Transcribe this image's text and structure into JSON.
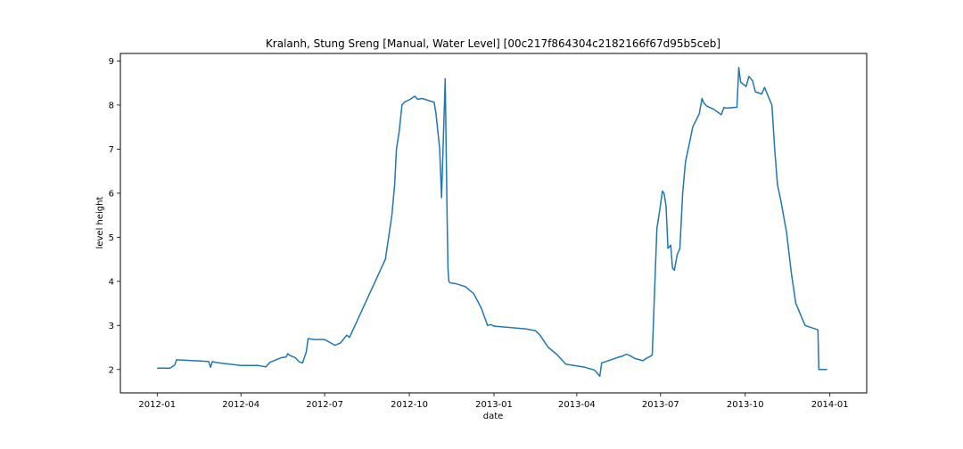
{
  "chart_data": {
    "type": "line",
    "title": "Kralanh, Stung Sreng [Manual, Water Level] [00c217f864304c2182166f67d95b5ceb]",
    "xlabel": "date",
    "ylabel": "level height",
    "xlim": [
      "2011-11-22",
      "2014-02-10"
    ],
    "ylim": [
      1.47,
      9.17
    ],
    "grid": false,
    "line_color": "#1f77b4",
    "x_ticks": [
      {
        "date": "2012-01-01",
        "label": "2012-01"
      },
      {
        "date": "2012-04-01",
        "label": "2012-04"
      },
      {
        "date": "2012-07-01",
        "label": "2012-07"
      },
      {
        "date": "2012-10-01",
        "label": "2012-10"
      },
      {
        "date": "2013-01-01",
        "label": "2013-01"
      },
      {
        "date": "2013-04-01",
        "label": "2013-04"
      },
      {
        "date": "2013-07-01",
        "label": "2013-07"
      },
      {
        "date": "2013-10-01",
        "label": "2013-10"
      },
      {
        "date": "2014-01-01",
        "label": "2014-01"
      }
    ],
    "y_ticks": [
      {
        "value": 2,
        "label": "2"
      },
      {
        "value": 3,
        "label": "3"
      },
      {
        "value": 4,
        "label": "4"
      },
      {
        "value": 5,
        "label": "5"
      },
      {
        "value": 6,
        "label": "6"
      },
      {
        "value": 7,
        "label": "7"
      },
      {
        "value": 8,
        "label": "8"
      },
      {
        "value": 9,
        "label": "9"
      }
    ],
    "series": [
      {
        "x": [
          "2012-01-01",
          "2012-01-15",
          "2012-01-20",
          "2012-01-22",
          "2012-02-10",
          "2012-02-20",
          "2012-02-26",
          "2012-02-28",
          "2012-03-01",
          "2012-03-05",
          "2012-03-20",
          "2012-04-01",
          "2012-04-20",
          "2012-04-25",
          "2012-04-28",
          "2012-05-03",
          "2012-05-15",
          "2012-05-20",
          "2012-05-22",
          "2012-05-24",
          "2012-05-30",
          "2012-06-03",
          "2012-06-07",
          "2012-06-11",
          "2012-06-13",
          "2012-06-20",
          "2012-07-01",
          "2012-07-08",
          "2012-07-12",
          "2012-07-18",
          "2012-07-25",
          "2012-07-28",
          "2012-09-05",
          "2012-09-12",
          "2012-09-15",
          "2012-09-17",
          "2012-09-20",
          "2012-09-23",
          "2012-09-26",
          "2012-10-01",
          "2012-10-07",
          "2012-10-10",
          "2012-10-15",
          "2012-10-28",
          "2012-10-30",
          "2012-11-03",
          "2012-11-05",
          "2012-11-09",
          "2012-11-11",
          "2012-11-12",
          "2012-11-13",
          "2012-11-14",
          "2012-11-16",
          "2012-11-20",
          "2012-12-01",
          "2012-12-10",
          "2012-12-18",
          "2012-12-25",
          "2012-12-29",
          "2012-12-31",
          "2013-01-03",
          "2013-01-20",
          "2013-02-05",
          "2013-02-15",
          "2013-02-20",
          "2013-03-01",
          "2013-03-10",
          "2013-03-20",
          "2013-04-01",
          "2013-04-10",
          "2013-04-15",
          "2013-04-20",
          "2013-04-26",
          "2013-04-28",
          "2013-05-05",
          "2013-05-15",
          "2013-05-20",
          "2013-05-25",
          "2013-05-30",
          "2013-06-03",
          "2013-06-12",
          "2013-06-16",
          "2013-06-20",
          "2013-06-22",
          "2013-06-24",
          "2013-06-27",
          "2013-06-30",
          "2013-07-03",
          "2013-07-05",
          "2013-07-07",
          "2013-07-09",
          "2013-07-12",
          "2013-07-14",
          "2013-07-16",
          "2013-07-19",
          "2013-07-22",
          "2013-07-25",
          "2013-07-28",
          "2013-08-05",
          "2013-08-12",
          "2013-08-15",
          "2013-08-17",
          "2013-08-20",
          "2013-08-28",
          "2013-09-05",
          "2013-09-08",
          "2013-09-10",
          "2013-09-22",
          "2013-09-24",
          "2013-09-26",
          "2013-10-02",
          "2013-10-05",
          "2013-10-09",
          "2013-10-12",
          "2013-10-19",
          "2013-10-22",
          "2013-10-30",
          "2013-11-02",
          "2013-11-05",
          "2013-11-09",
          "2013-11-15",
          "2013-11-20",
          "2013-11-25",
          "2013-11-30",
          "2013-12-05",
          "2013-12-12",
          "2013-12-15",
          "2013-12-19",
          "2013-12-20",
          "2013-12-22",
          "2013-12-26",
          "2013-12-29"
        ],
        "values": [
          2.03,
          2.03,
          2.1,
          2.22,
          2.2,
          2.19,
          2.18,
          2.05,
          2.18,
          2.16,
          2.12,
          2.09,
          2.09,
          2.07,
          2.06,
          2.17,
          2.27,
          2.28,
          2.36,
          2.32,
          2.27,
          2.18,
          2.15,
          2.4,
          2.7,
          2.68,
          2.68,
          2.6,
          2.55,
          2.6,
          2.78,
          2.73,
          4.5,
          5.5,
          6.2,
          7.0,
          7.4,
          8.0,
          8.07,
          8.12,
          8.2,
          8.13,
          8.15,
          8.06,
          7.8,
          7.0,
          5.9,
          8.6,
          5.5,
          4.3,
          4.0,
          3.97,
          3.96,
          3.95,
          3.88,
          3.72,
          3.4,
          3.0,
          3.02,
          2.99,
          2.98,
          2.95,
          2.92,
          2.88,
          2.78,
          2.5,
          2.35,
          2.12,
          2.08,
          2.05,
          2.02,
          1.99,
          1.85,
          2.15,
          2.2,
          2.27,
          2.3,
          2.35,
          2.3,
          2.25,
          2.2,
          2.26,
          2.3,
          2.33,
          3.5,
          5.2,
          5.6,
          6.05,
          5.98,
          5.7,
          4.75,
          4.82,
          4.3,
          4.25,
          4.6,
          4.75,
          6.0,
          6.7,
          7.5,
          7.8,
          8.15,
          8.05,
          7.98,
          7.9,
          7.78,
          7.95,
          7.93,
          7.95,
          8.85,
          8.52,
          8.42,
          8.65,
          8.55,
          8.3,
          8.25,
          8.4,
          8.0,
          7.0,
          6.2,
          5.8,
          5.1,
          4.2,
          3.5,
          3.25,
          3.0,
          2.95,
          2.93,
          2.9,
          2.0,
          2.0,
          2.0,
          2.0
        ]
      }
    ]
  }
}
